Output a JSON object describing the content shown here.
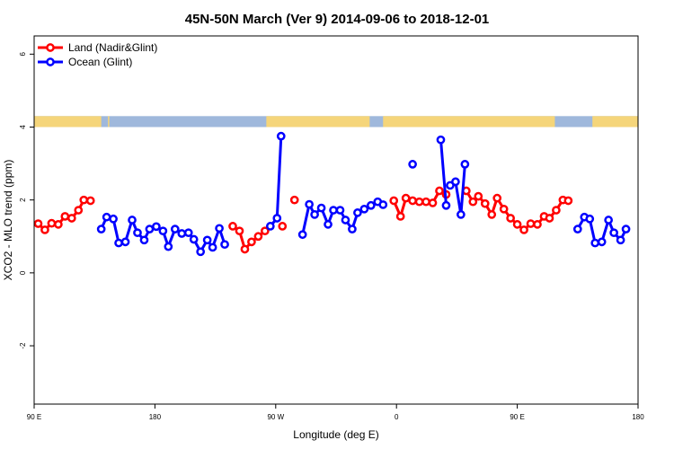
{
  "chart_data": {
    "type": "line",
    "title": "45N-50N March (Ver 9)   2014-09-06 to 2018-12-01",
    "xlabel": "Longitude (deg E)",
    "ylabel": "XCO2 - MLO trend (ppm)",
    "xlim": [
      90,
      540
    ],
    "ylim": [
      -3.6,
      6.5
    ],
    "x_ticks": [
      {
        "value": 90,
        "label": "90 E"
      },
      {
        "value": 180,
        "label": "180"
      },
      {
        "value": 270,
        "label": "90 W"
      },
      {
        "value": 360,
        "label": "0"
      },
      {
        "value": 450,
        "label": "90 E"
      },
      {
        "value": 540,
        "label": "180"
      }
    ],
    "y_ticks": [
      {
        "value": -2,
        "label": "-2"
      },
      {
        "value": 0,
        "label": "0"
      },
      {
        "value": 2,
        "label": "2"
      },
      {
        "value": 4,
        "label": "4"
      },
      {
        "value": 6,
        "label": "6"
      }
    ],
    "grid": false,
    "legend": {
      "position": "top-left",
      "entries": [
        {
          "label": "Land (Nadir&Glint)",
          "color": "#ff0000"
        },
        {
          "label": "Ocean (Glint)",
          "color": "#0000ff"
        }
      ]
    },
    "land_mask": {
      "y_range": [
        4.0,
        4.3
      ],
      "land_color": "#f5d57a",
      "ocean_color": "#9fb8dc",
      "land_intervals": [
        [
          90,
          140
        ],
        [
          145,
          146
        ],
        [
          263,
          340
        ],
        [
          350,
          478
        ],
        [
          506,
          540
        ]
      ]
    },
    "series": [
      {
        "name": "Land (Nadir&Glint)",
        "color": "#ff0000",
        "segments": [
          [
            [
              93,
              1.35
            ],
            [
              98,
              1.18
            ],
            [
              103,
              1.36
            ],
            [
              108,
              1.33
            ],
            [
              113,
              1.55
            ],
            [
              118,
              1.5
            ],
            [
              123,
              1.72
            ],
            [
              127,
              2.0
            ],
            [
              132,
              1.98
            ]
          ],
          [
            [
              238,
              1.28
            ],
            [
              243,
              1.15
            ],
            [
              247,
              0.65
            ],
            [
              252,
              0.85
            ],
            [
              257,
              1.0
            ],
            [
              262,
              1.15
            ]
          ],
          [
            [
              275,
              1.28
            ]
          ],
          [
            [
              284,
              2.0
            ]
          ],
          [
            [
              358,
              1.98
            ],
            [
              363,
              1.55
            ],
            [
              367,
              2.05
            ],
            [
              372,
              1.98
            ],
            [
              377,
              1.95
            ],
            [
              382,
              1.95
            ],
            [
              387,
              1.92
            ],
            [
              392,
              2.25
            ],
            [
              397,
              2.15
            ]
          ],
          [
            [
              412,
              2.25
            ],
            [
              417,
              1.95
            ],
            [
              421,
              2.1
            ],
            [
              426,
              1.9
            ],
            [
              431,
              1.6
            ],
            [
              435,
              2.05
            ],
            [
              440,
              1.75
            ],
            [
              445,
              1.5
            ],
            [
              450,
              1.33
            ],
            [
              455,
              1.18
            ],
            [
              460,
              1.35
            ],
            [
              465,
              1.33
            ],
            [
              470,
              1.55
            ],
            [
              474,
              1.5
            ],
            [
              479,
              1.72
            ],
            [
              484,
              2.0
            ],
            [
              488,
              1.98
            ]
          ]
        ]
      },
      {
        "name": "Ocean (Glint)",
        "color": "#0000ff",
        "segments": [
          [
            [
              140,
              1.2
            ],
            [
              144,
              1.53
            ],
            [
              149,
              1.48
            ],
            [
              153,
              0.82
            ],
            [
              158,
              0.85
            ],
            [
              163,
              1.45
            ],
            [
              167,
              1.1
            ],
            [
              172,
              0.9
            ],
            [
              176,
              1.2
            ],
            [
              181,
              1.27
            ],
            [
              186,
              1.15
            ],
            [
              190,
              0.72
            ],
            [
              195,
              1.2
            ],
            [
              200,
              1.08
            ],
            [
              205,
              1.1
            ],
            [
              209,
              0.92
            ],
            [
              214,
              0.58
            ],
            [
              219,
              0.9
            ],
            [
              223,
              0.7
            ],
            [
              228,
              1.22
            ],
            [
              232,
              0.78
            ]
          ],
          [
            [
              266,
              1.28
            ],
            [
              271,
              1.5
            ],
            [
              274,
              3.75
            ]
          ],
          [
            [
              290,
              1.05
            ],
            [
              295,
              1.88
            ],
            [
              299,
              1.6
            ],
            [
              304,
              1.78
            ],
            [
              309,
              1.33
            ],
            [
              313,
              1.72
            ],
            [
              318,
              1.72
            ],
            [
              322,
              1.45
            ],
            [
              327,
              1.2
            ],
            [
              331,
              1.65
            ],
            [
              336,
              1.75
            ],
            [
              341,
              1.85
            ],
            [
              346,
              1.95
            ],
            [
              350,
              1.87
            ]
          ],
          [
            [
              372,
              2.98
            ]
          ],
          [
            [
              393,
              3.65
            ],
            [
              397,
              1.85
            ]
          ],
          [
            [
              400,
              2.4
            ],
            [
              404,
              2.5
            ],
            [
              408,
              1.6
            ],
            [
              411,
              2.98
            ]
          ],
          [
            [
              495,
              1.2
            ],
            [
              500,
              1.53
            ],
            [
              504,
              1.48
            ],
            [
              508,
              0.82
            ],
            [
              513,
              0.85
            ],
            [
              518,
              1.45
            ],
            [
              522,
              1.1
            ],
            [
              527,
              0.9
            ],
            [
              531,
              1.2
            ]
          ]
        ]
      }
    ]
  }
}
